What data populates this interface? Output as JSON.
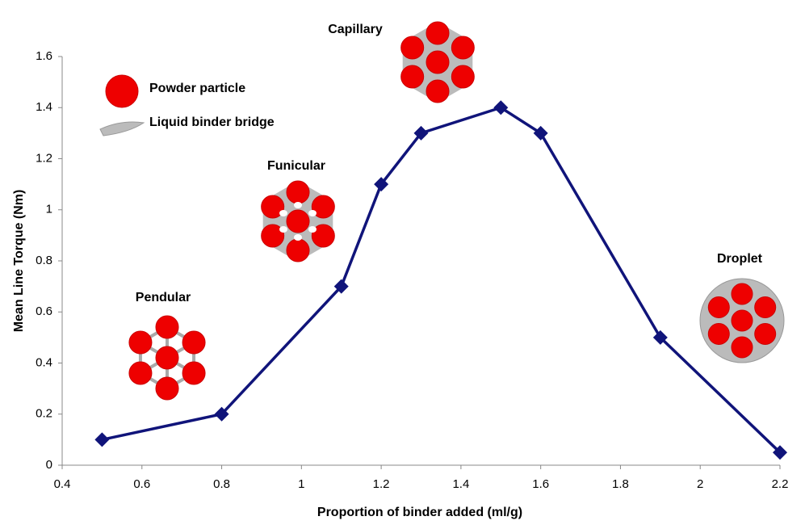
{
  "chart_data": {
    "type": "line",
    "x_label": "Proportion of binder added (ml/g)",
    "y_label": "Mean Line Torque (Nm)",
    "x": [
      0.5,
      0.8,
      1.1,
      1.2,
      1.3,
      1.5,
      1.6,
      1.9,
      2.2
    ],
    "values": [
      0.1,
      0.2,
      0.7,
      1.1,
      1.3,
      1.4,
      1.3,
      0.5,
      0.05
    ],
    "color": "#10147a",
    "marker": "diamond",
    "xlim": [
      0.4,
      2.2
    ],
    "xticks": [
      0.4,
      0.6,
      0.8,
      1,
      1.2,
      1.4,
      1.6,
      1.8,
      2,
      2.2
    ],
    "ylim": [
      0,
      1.6
    ],
    "yticks": [
      0,
      0.2,
      0.4,
      0.6,
      0.8,
      1,
      1.2,
      1.4,
      1.6
    ],
    "grid": false,
    "legend_items": [
      "Powder particle",
      "Liquid binder bridge"
    ],
    "annotations": [
      "Capillary",
      "Funicular",
      "Pendular",
      "Droplet"
    ]
  }
}
